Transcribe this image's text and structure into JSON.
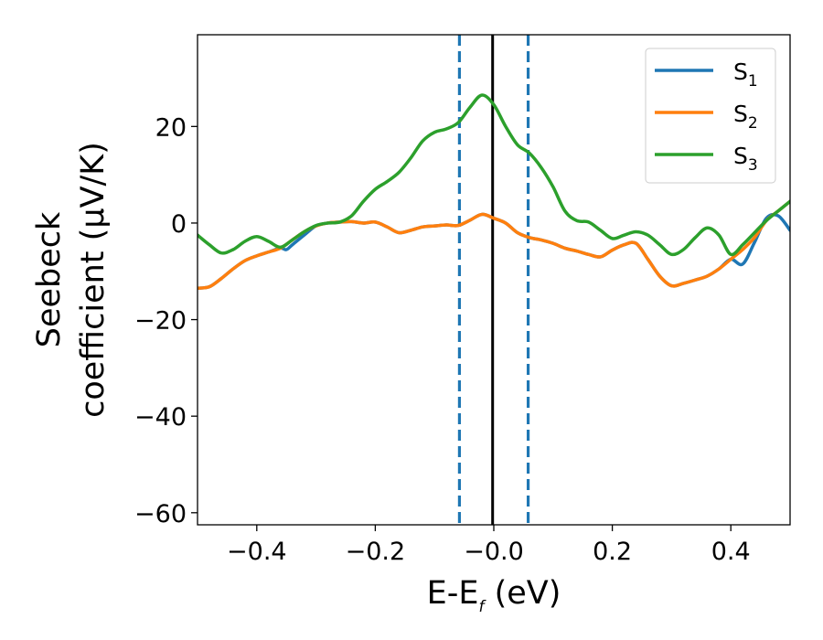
{
  "chart_data": {
    "type": "line",
    "xlabel": {
      "main": "E-E",
      "sub": "f",
      "unit": " (eV)"
    },
    "ylabel": {
      "line1": "Seebeck",
      "line2": "coefficient  (μV/K)"
    },
    "xlim": [
      -0.5,
      0.5
    ],
    "ylim": [
      -62.5,
      39
    ],
    "xticks": [
      -0.4,
      -0.2,
      0.0,
      0.2,
      0.4
    ],
    "xtick_labels": [
      "−0.4",
      "−0.2",
      "−0.0",
      "0.2",
      "0.4"
    ],
    "yticks": [
      -60,
      -40,
      -20,
      0,
      20
    ],
    "ytick_labels": [
      "−60",
      "−40",
      "−20",
      "0",
      "20"
    ],
    "grid": false,
    "legend_placement": "top-right",
    "vlines": [
      {
        "x": -0.058,
        "style": "dashed",
        "color": "#1f77b4"
      },
      {
        "x": -0.002,
        "style": "solid",
        "color": "#000000"
      },
      {
        "x": 0.058,
        "style": "dashed",
        "color": "#1f77b4"
      }
    ],
    "series": [
      {
        "name": "S",
        "sub": "1",
        "color": "#1f77b4",
        "points": [
          [
            -0.5,
            -13.5
          ],
          [
            -0.48,
            -13.2
          ],
          [
            -0.46,
            -11.5
          ],
          [
            -0.44,
            -9.5
          ],
          [
            -0.42,
            -7.8
          ],
          [
            -0.4,
            -6.8
          ],
          [
            -0.38,
            -6.0
          ],
          [
            -0.36,
            -5.2
          ],
          [
            -0.35,
            -5.5
          ],
          [
            -0.34,
            -4.5
          ],
          [
            -0.32,
            -2.5
          ],
          [
            -0.3,
            -0.6
          ],
          [
            -0.28,
            0.0
          ],
          [
            -0.26,
            0.2
          ],
          [
            -0.24,
            0.3
          ],
          [
            -0.22,
            0.0
          ],
          [
            -0.2,
            0.2
          ],
          [
            -0.18,
            -0.8
          ],
          [
            -0.16,
            -2.0
          ],
          [
            -0.14,
            -1.5
          ],
          [
            -0.12,
            -0.8
          ],
          [
            -0.1,
            -0.6
          ],
          [
            -0.08,
            -0.4
          ],
          [
            -0.06,
            -0.5
          ],
          [
            -0.04,
            0.6
          ],
          [
            -0.02,
            1.8
          ],
          [
            0.0,
            1.0
          ],
          [
            0.02,
            0.0
          ],
          [
            0.04,
            -2.0
          ],
          [
            0.06,
            -3.0
          ],
          [
            0.08,
            -3.5
          ],
          [
            0.1,
            -4.2
          ],
          [
            0.12,
            -5.2
          ],
          [
            0.14,
            -5.8
          ],
          [
            0.16,
            -6.5
          ],
          [
            0.18,
            -7.0
          ],
          [
            0.2,
            -5.6
          ],
          [
            0.22,
            -4.5
          ],
          [
            0.24,
            -4.2
          ],
          [
            0.26,
            -7.5
          ],
          [
            0.28,
            -11.0
          ],
          [
            0.3,
            -13.0
          ],
          [
            0.32,
            -12.5
          ],
          [
            0.34,
            -11.8
          ],
          [
            0.36,
            -11.0
          ],
          [
            0.38,
            -9.5
          ],
          [
            0.4,
            -7.5
          ],
          [
            0.42,
            -8.5
          ],
          [
            0.44,
            -4.0
          ],
          [
            0.46,
            1.0
          ],
          [
            0.48,
            1.5
          ],
          [
            0.5,
            -1.5
          ]
        ]
      },
      {
        "name": "S",
        "sub": "2",
        "color": "#ff7f0e",
        "points": [
          [
            -0.5,
            -13.5
          ],
          [
            -0.48,
            -13.2
          ],
          [
            -0.46,
            -11.5
          ],
          [
            -0.44,
            -9.5
          ],
          [
            -0.42,
            -7.8
          ],
          [
            -0.4,
            -6.8
          ],
          [
            -0.38,
            -6.0
          ],
          [
            -0.36,
            -5.2
          ],
          [
            -0.34,
            -3.5
          ],
          [
            -0.32,
            -1.8
          ],
          [
            -0.3,
            -0.6
          ],
          [
            -0.28,
            0.0
          ],
          [
            -0.26,
            0.2
          ],
          [
            -0.24,
            0.3
          ],
          [
            -0.22,
            0.0
          ],
          [
            -0.2,
            0.2
          ],
          [
            -0.18,
            -0.8
          ],
          [
            -0.16,
            -2.0
          ],
          [
            -0.14,
            -1.5
          ],
          [
            -0.12,
            -0.8
          ],
          [
            -0.1,
            -0.6
          ],
          [
            -0.08,
            -0.4
          ],
          [
            -0.06,
            -0.5
          ],
          [
            -0.04,
            0.6
          ],
          [
            -0.02,
            1.8
          ],
          [
            0.0,
            1.0
          ],
          [
            0.02,
            0.0
          ],
          [
            0.04,
            -2.0
          ],
          [
            0.06,
            -3.0
          ],
          [
            0.08,
            -3.5
          ],
          [
            0.1,
            -4.2
          ],
          [
            0.12,
            -5.2
          ],
          [
            0.14,
            -5.8
          ],
          [
            0.16,
            -6.5
          ],
          [
            0.18,
            -7.0
          ],
          [
            0.2,
            -5.6
          ],
          [
            0.22,
            -4.5
          ],
          [
            0.24,
            -4.2
          ],
          [
            0.26,
            -7.5
          ],
          [
            0.28,
            -11.0
          ],
          [
            0.3,
            -13.0
          ],
          [
            0.32,
            -12.5
          ],
          [
            0.34,
            -11.8
          ],
          [
            0.36,
            -11.0
          ],
          [
            0.38,
            -9.5
          ],
          [
            0.4,
            -7.5
          ],
          [
            0.42,
            -5.5
          ],
          [
            0.44,
            -3.0
          ],
          [
            0.46,
            0.5
          ],
          [
            0.48,
            2.5
          ],
          [
            0.5,
            4.5
          ]
        ]
      },
      {
        "name": "S",
        "sub": "3",
        "color": "#2ca02c",
        "points": [
          [
            -0.5,
            -2.5
          ],
          [
            -0.48,
            -4.5
          ],
          [
            -0.46,
            -6.2
          ],
          [
            -0.44,
            -5.5
          ],
          [
            -0.42,
            -3.8
          ],
          [
            -0.4,
            -2.8
          ],
          [
            -0.38,
            -3.8
          ],
          [
            -0.36,
            -5.0
          ],
          [
            -0.34,
            -3.5
          ],
          [
            -0.32,
            -1.8
          ],
          [
            -0.3,
            -0.5
          ],
          [
            -0.28,
            0.0
          ],
          [
            -0.26,
            0.2
          ],
          [
            -0.24,
            1.5
          ],
          [
            -0.22,
            4.5
          ],
          [
            -0.2,
            7.0
          ],
          [
            -0.18,
            8.6
          ],
          [
            -0.16,
            10.5
          ],
          [
            -0.14,
            13.5
          ],
          [
            -0.12,
            17.0
          ],
          [
            -0.1,
            18.8
          ],
          [
            -0.08,
            19.5
          ],
          [
            -0.06,
            20.8
          ],
          [
            -0.04,
            24.0
          ],
          [
            -0.02,
            26.5
          ],
          [
            0.0,
            24.5
          ],
          [
            0.02,
            20.0
          ],
          [
            0.04,
            16.2
          ],
          [
            0.06,
            14.5
          ],
          [
            0.08,
            11.5
          ],
          [
            0.1,
            7.5
          ],
          [
            0.12,
            2.5
          ],
          [
            0.14,
            0.5
          ],
          [
            0.16,
            0.2
          ],
          [
            0.18,
            -1.5
          ],
          [
            0.2,
            -3.2
          ],
          [
            0.22,
            -2.5
          ],
          [
            0.24,
            -1.8
          ],
          [
            0.26,
            -2.5
          ],
          [
            0.28,
            -4.5
          ],
          [
            0.3,
            -6.5
          ],
          [
            0.32,
            -5.5
          ],
          [
            0.34,
            -3.0
          ],
          [
            0.36,
            -1.0
          ],
          [
            0.38,
            -2.5
          ],
          [
            0.4,
            -6.5
          ],
          [
            0.42,
            -4.5
          ],
          [
            0.44,
            -2.0
          ],
          [
            0.46,
            0.5
          ],
          [
            0.48,
            2.5
          ],
          [
            0.5,
            4.5
          ]
        ]
      }
    ]
  }
}
